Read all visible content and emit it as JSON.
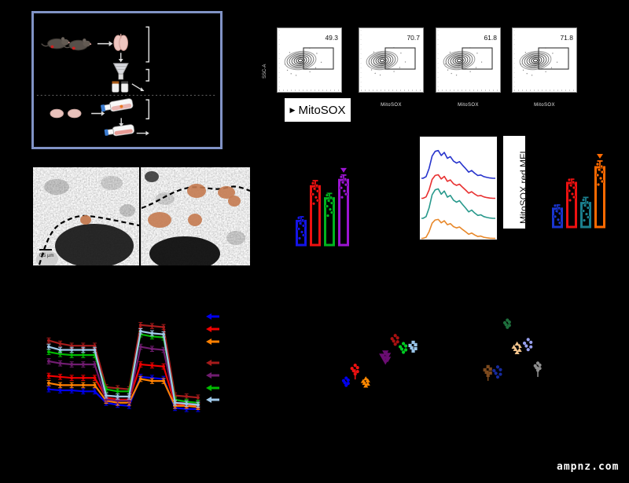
{
  "figure": {
    "watermark": "ampnz.com",
    "colors": {
      "background": "#000000",
      "panel_border": "#8193c6"
    }
  },
  "panel_a": {
    "description": "experimental workflow schematic (labels not legible: black text on black background)",
    "icons": [
      "mouse-icon",
      "mouse-icon",
      "arrow-right-icon",
      "lung-icon",
      "arrow-down-icon",
      "cell-strainer-icon",
      "microtube-icon",
      "microtube-icon",
      "arrow-diagonal-icon",
      "bracket-large",
      "bracket-small",
      "dashed-divider",
      "tissue-icon",
      "tissue-icon",
      "arrow-right-icon",
      "culture-flask-icon",
      "arrow-down-icon",
      "culture-flask-icon",
      "arrow-right-icon",
      "bracket-small"
    ]
  },
  "flow_panel": {
    "ylabel": "SSC-A",
    "xlabel_box": "MitoSOX",
    "plots": [
      {
        "gate_percent": "49.3"
      },
      {
        "gate_percent": "70.7",
        "xlabel": "MitoSOX"
      },
      {
        "gate_percent": "61.8",
        "xlabel": "MitoSOX"
      },
      {
        "gate_percent": "71.8",
        "xlabel": "MitoSOX"
      }
    ]
  },
  "em_panel": {
    "scale_bar_label": "0.5 µm"
  },
  "mfi_label": "MitoSOX red MFI",
  "chart_data": [
    {
      "id": "bar-left",
      "type": "bar",
      "units": "arbitrary (axis labels not legible)",
      "categories": [
        "blue",
        "red",
        "green",
        "purple"
      ],
      "values": [
        34,
        83,
        66,
        92
      ],
      "errors": [
        6,
        8,
        7,
        7
      ],
      "colors": [
        "#1414e8",
        "#ee1111",
        "#00b41e",
        "#9c14d2"
      ],
      "ylim": [
        0,
        100
      ],
      "outlier": {
        "bar": 3,
        "symbol": "triangle-down"
      }
    },
    {
      "id": "ridge-histograms",
      "type": "area",
      "title": "MitoSOX red fluorescence histograms (stacked ridgeline)",
      "profile": [
        0,
        0.06,
        0.35,
        0.8,
        0.97,
        1,
        0.82,
        0.93,
        0.72,
        0.78,
        0.62,
        0.55,
        0.6,
        0.47,
        0.35,
        0.22,
        0.28,
        0.18,
        0.1,
        0.12,
        0.06,
        0.03,
        0.01,
        0
      ],
      "series": [
        {
          "name": "blue",
          "color": "#2633cc",
          "height": 38
        },
        {
          "name": "red",
          "color": "#e83030",
          "height": 30
        },
        {
          "name": "teal",
          "color": "#28998c",
          "height": 35
        },
        {
          "name": "orange",
          "color": "#e8882a",
          "height": 25
        }
      ]
    },
    {
      "id": "bar-right",
      "type": "bar",
      "units": "MitoSOX red MFI, arbitrary (axis labels not legible)",
      "categories": [
        "blue",
        "red",
        "teal",
        "orange"
      ],
      "values": [
        29,
        70,
        38,
        95
      ],
      "errors": [
        6,
        6,
        9,
        10
      ],
      "colors": [
        "#1a35cf",
        "#ee1111",
        "#1b7f8e",
        "#ff6a00"
      ],
      "ylim": [
        0,
        100
      ],
      "outlier": {
        "bar": 3,
        "symbol": "triangle-down"
      }
    },
    {
      "id": "ocr-line",
      "type": "line",
      "units": "arbitrary OCR-style trace (axis labels not legible)",
      "x": [
        1,
        2,
        3,
        4,
        5,
        6,
        7,
        8,
        9,
        10,
        11,
        12,
        13,
        14
      ],
      "ylim": [
        0,
        100
      ],
      "error": 2.5,
      "legend_position": "right",
      "legend_gap_after": 3,
      "legend_order": [
        "blue",
        "red",
        "orange",
        "dark-red",
        "purple",
        "green",
        "light-blue"
      ],
      "series": [
        {
          "name": "blue",
          "color": "#0000ee",
          "values": [
            26,
            25,
            25,
            24,
            24,
            13,
            11,
            10,
            38,
            37,
            36,
            8,
            7,
            7
          ]
        },
        {
          "name": "red",
          "color": "#ee0000",
          "values": [
            39,
            38,
            37,
            37,
            37,
            18,
            16,
            16,
            50,
            49,
            48,
            12,
            11,
            10
          ]
        },
        {
          "name": "orange",
          "color": "#ff8000",
          "values": [
            32,
            30,
            30,
            30,
            30,
            15,
            13,
            13,
            36,
            34,
            34,
            10,
            10,
            9
          ]
        },
        {
          "name": "dark-red",
          "color": "#a51b1b",
          "values": [
            73,
            70,
            68,
            68,
            68,
            28,
            27,
            26,
            88,
            87,
            86,
            20,
            19,
            18
          ]
        },
        {
          "name": "purple",
          "color": "#701c70",
          "values": [
            53,
            51,
            50,
            50,
            50,
            16,
            15,
            15,
            67,
            65,
            64,
            13,
            13,
            12
          ]
        },
        {
          "name": "green",
          "color": "#00bb00",
          "values": [
            62,
            60,
            59,
            59,
            59,
            26,
            24,
            24,
            79,
            77,
            76,
            16,
            14,
            13
          ]
        },
        {
          "name": "light-blue",
          "color": "#9fc8e8",
          "values": [
            67,
            64,
            64,
            64,
            64,
            20,
            19,
            19,
            82,
            80,
            79,
            13,
            12,
            11
          ]
        }
      ]
    },
    {
      "id": "scatter-left",
      "type": "scatter",
      "units": "arbitrary energy-map coordinates (axis labels not legible)",
      "xlim": [
        0,
        100
      ],
      "ylim": [
        0,
        100
      ],
      "groups": [
        {
          "name": "blue",
          "color": "#0000ee",
          "shape": "circle",
          "x": 7,
          "y": 14,
          "spread": 5
        },
        {
          "name": "red",
          "color": "#ee1111",
          "shape": "circle",
          "x": 18,
          "y": 34,
          "spread": 6,
          "stem": true
        },
        {
          "name": "orange",
          "color": "#ff8800",
          "shape": "triangle-up",
          "x": 31,
          "y": 13,
          "spread": 5
        },
        {
          "name": "purple",
          "color": "#6a0d72",
          "shape": "triangle-down",
          "x": 55,
          "y": 54,
          "spread": 6,
          "size": 1.5
        },
        {
          "name": "dark-red",
          "color": "#aa1111",
          "shape": "circle",
          "x": 67,
          "y": 82,
          "spread": 6
        },
        {
          "name": "green",
          "color": "#00cc22",
          "shape": "circle",
          "x": 77,
          "y": 69,
          "spread": 6
        },
        {
          "name": "light-blue",
          "color": "#99c4e8",
          "shape": "square",
          "x": 89,
          "y": 71,
          "spread": 6
        }
      ]
    },
    {
      "id": "scatter-right",
      "type": "scatter",
      "units": "arbitrary energy-map coordinates (axis labels not legible)",
      "xlim": [
        0,
        100
      ],
      "ylim": [
        0,
        100
      ],
      "groups": [
        {
          "name": "dark-green",
          "color": "#1e6e3c",
          "shape": "circle",
          "x": 39,
          "y": 89,
          "spread": 5
        },
        {
          "name": "tan",
          "color": "#f2c38c",
          "shape": "triangle-up",
          "x": 53,
          "y": 52,
          "spread": 6,
          "accent_dot": "#111111"
        },
        {
          "name": "periwinkle",
          "color": "#98a0ee",
          "shape": "circle",
          "x": 69,
          "y": 58,
          "spread": 7
        },
        {
          "name": "brown",
          "color": "#7d4a1e",
          "shape": "square",
          "x": 11,
          "y": 17,
          "spread": 6,
          "stem": true
        },
        {
          "name": "navy",
          "color": "#162a9e",
          "shape": "circle",
          "x": 25,
          "y": 16,
          "spread": 7
        },
        {
          "name": "gray",
          "color": "#8d8d8d",
          "shape": "circle",
          "x": 83,
          "y": 23,
          "spread": 5,
          "stem": true
        }
      ]
    }
  ]
}
